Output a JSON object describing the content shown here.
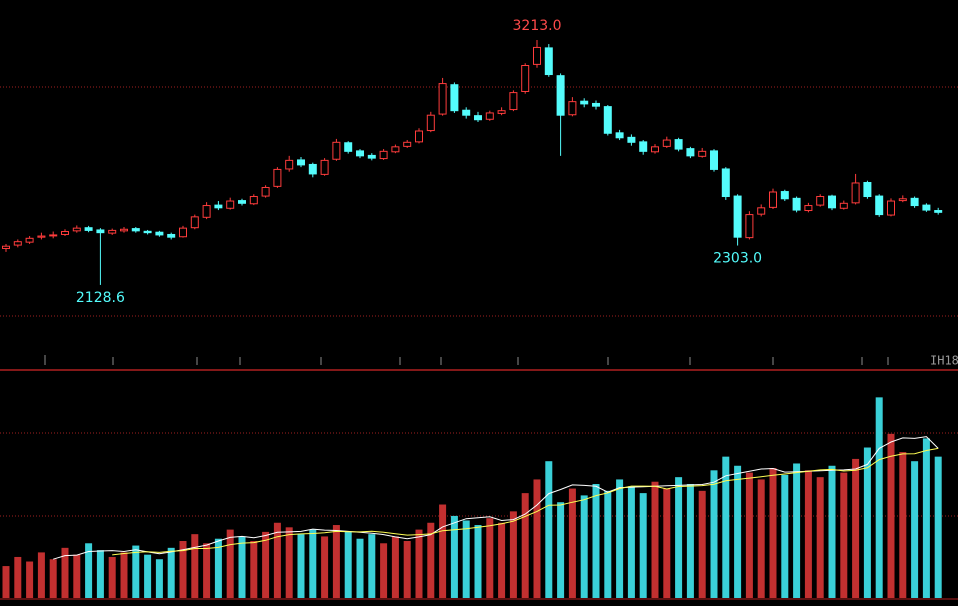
{
  "chart_data": {
    "type": "candlestick",
    "ylim": [
      1752,
      3390
    ],
    "up_color": "#ff3c3c",
    "down_color": "#54fcfc",
    "open": [
      2290,
      2305,
      2318,
      2340,
      2348,
      2352,
      2368,
      2382,
      2372,
      2358,
      2368,
      2378,
      2366,
      2362,
      2352,
      2342,
      2382,
      2428,
      2482,
      2468,
      2502,
      2488,
      2522,
      2565,
      2642,
      2682,
      2662,
      2618,
      2685,
      2758,
      2722,
      2702,
      2688,
      2718,
      2742,
      2762,
      2812,
      2885,
      3015,
      2902,
      2878,
      2862,
      2888,
      2905,
      2985,
      3105,
      3178,
      3055,
      2882,
      2942,
      2932,
      2918,
      2802,
      2782,
      2762,
      2718,
      2742,
      2772,
      2732,
      2698,
      2722,
      2642,
      2522,
      2338,
      2442,
      2472,
      2542,
      2512,
      2458,
      2482,
      2522,
      2468,
      2492,
      2582,
      2522,
      2438,
      2502,
      2512,
      2482,
      2458
    ],
    "high": [
      2310,
      2330,
      2345,
      2360,
      2365,
      2375,
      2392,
      2390,
      2380,
      2378,
      2385,
      2385,
      2372,
      2368,
      2360,
      2390,
      2440,
      2495,
      2500,
      2515,
      2510,
      2530,
      2570,
      2650,
      2700,
      2695,
      2670,
      2690,
      2775,
      2765,
      2730,
      2712,
      2730,
      2750,
      2770,
      2822,
      2895,
      3045,
      3025,
      2915,
      2895,
      2900,
      2915,
      2990,
      3110,
      3213,
      3195,
      3065,
      2960,
      2955,
      2945,
      2925,
      2815,
      2795,
      2770,
      2752,
      2785,
      2780,
      2740,
      2735,
      2730,
      2650,
      2530,
      2455,
      2485,
      2555,
      2550,
      2520,
      2492,
      2530,
      2528,
      2502,
      2620,
      2590,
      2530,
      2512,
      2525,
      2520,
      2490,
      2470
    ],
    "low": [
      2275,
      2295,
      2310,
      2330,
      2335,
      2345,
      2360,
      2362,
      2128.6,
      2350,
      2360,
      2360,
      2352,
      2342,
      2330,
      2338,
      2375,
      2420,
      2460,
      2462,
      2480,
      2482,
      2515,
      2558,
      2630,
      2650,
      2605,
      2612,
      2678,
      2710,
      2690,
      2680,
      2682,
      2712,
      2735,
      2755,
      2805,
      2878,
      2890,
      2865,
      2850,
      2855,
      2880,
      2898,
      2975,
      3090,
      3050,
      2700,
      2875,
      2915,
      2905,
      2790,
      2770,
      2745,
      2705,
      2710,
      2735,
      2720,
      2690,
      2692,
      2630,
      2505,
      2303,
      2330,
      2432,
      2465,
      2500,
      2450,
      2450,
      2475,
      2460,
      2462,
      2485,
      2510,
      2430,
      2432,
      2495,
      2470,
      2452,
      2440
    ],
    "close": [
      2300,
      2320,
      2335,
      2345,
      2350,
      2365,
      2380,
      2370,
      2360,
      2370,
      2375,
      2368,
      2360,
      2350,
      2340,
      2380,
      2430,
      2480,
      2470,
      2500,
      2490,
      2520,
      2560,
      2640,
      2680,
      2660,
      2620,
      2680,
      2760,
      2720,
      2700,
      2690,
      2720,
      2740,
      2760,
      2810,
      2880,
      3020,
      2900,
      2880,
      2860,
      2890,
      2900,
      2980,
      3100,
      3180,
      3060,
      2880,
      2940,
      2930,
      2920,
      2800,
      2780,
      2760,
      2720,
      2740,
      2770,
      2730,
      2700,
      2720,
      2640,
      2520,
      2340,
      2440,
      2470,
      2540,
      2510,
      2460,
      2480,
      2520,
      2470,
      2490,
      2580,
      2520,
      2440,
      2500,
      2510,
      2480,
      2460,
      2450
    ],
    "annotations": [
      {
        "label": "3213.0",
        "value": 3213,
        "at": "high",
        "color": "#ff4a4a"
      },
      {
        "label": "2128.6",
        "value": 2128.6,
        "at": "low",
        "color": "#54fcfc"
      },
      {
        "label": "2303.0",
        "value": 2303,
        "at": "low",
        "color": "#54fcfc"
      }
    ],
    "symbol": "IH18",
    "volume": {
      "ylim": [
        0,
        100
      ],
      "values": [
        14,
        18,
        16,
        20,
        17,
        22,
        19,
        24,
        21,
        18,
        20,
        23,
        19,
        17,
        22,
        25,
        28,
        24,
        26,
        30,
        27,
        25,
        29,
        33,
        31,
        28,
        30,
        27,
        32,
        29,
        26,
        28,
        24,
        27,
        25,
        30,
        33,
        41,
        36,
        34,
        32,
        35,
        33,
        38,
        46,
        52,
        60,
        42,
        48,
        45,
        50,
        47,
        52,
        49,
        46,
        51,
        48,
        53,
        50,
        47,
        56,
        62,
        58,
        55,
        52,
        57,
        54,
        59,
        56,
        53,
        58,
        55,
        61,
        66,
        88,
        72,
        64,
        60,
        70,
        62
      ],
      "ma": [
        {
          "color": "#ffffff",
          "values": [
            null,
            null,
            null,
            null,
            17,
            18.6,
            18.8,
            20.4,
            20.6,
            20.8,
            20.4,
            21.2,
            20.2,
            19.4,
            20.2,
            21.2,
            22.2,
            23.2,
            25,
            26.6,
            27,
            26.4,
            27.4,
            28.8,
            29,
            29.2,
            30.2,
            29.8,
            29.6,
            29.2,
            28.8,
            28.4,
            27.8,
            26.8,
            26,
            26.8,
            27.8,
            31.2,
            33,
            34.8,
            35.2,
            35.6,
            34,
            34.4,
            36.8,
            40.8,
            45.8,
            47.6,
            49.6,
            49.4,
            49,
            46.4,
            48.4,
            48.6,
            48.8,
            49,
            49.2,
            49.4,
            49.6,
            49.8,
            50.8,
            53.6,
            54.6,
            55.6,
            56.6,
            56.8,
            55.2,
            55.4,
            55.6,
            55.8,
            56,
            56.2,
            56.6,
            58.6,
            65.6,
            68.4,
            70.2,
            70,
            70.8,
            65.6
          ]
        },
        {
          "color": "#ffff54",
          "values": [
            null,
            null,
            null,
            null,
            null,
            null,
            null,
            null,
            null,
            18.9,
            19.5,
            20,
            20.3,
            20,
            20.5,
            20.8,
            21.7,
            21.7,
            22.2,
            23.4,
            24.1,
            24.3,
            25.3,
            26.9,
            27.8,
            28.1,
            28.3,
            28.6,
            29.2,
            29.1,
            29,
            29.3,
            28.8,
            28.2,
            27.6,
            27.8,
            28.1,
            29.5,
            29.9,
            30.4,
            31,
            31.7,
            32.6,
            33.7,
            35.8,
            38,
            40.7,
            40.8,
            42,
            43.1,
            44.9,
            46.1,
            48,
            49.1,
            49.1,
            49,
            47.8,
            48.9,
            49.1,
            49.3,
            49.9,
            51.4,
            52,
            52.6,
            53.2,
            53.8,
            54.4,
            55,
            55.6,
            56.2,
            56.4,
            55.7,
            56,
            57.1,
            60.7,
            62.2,
            63.2,
            63.3,
            64.7,
            65.6
          ]
        }
      ]
    }
  }
}
